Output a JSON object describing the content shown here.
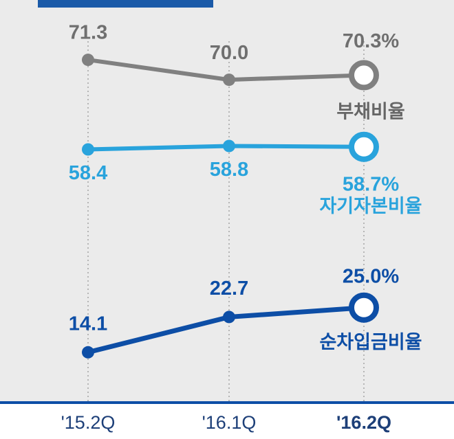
{
  "chart_data": {
    "type": "line",
    "categories": [
      "'15.2Q",
      "'16.1Q",
      "'16.2Q"
    ],
    "series": [
      {
        "name": "부채비율",
        "color": "#808080",
        "values": [
          71.3,
          70.0,
          70.3
        ],
        "value_labels": [
          "71.3",
          "70.0",
          "70.3%"
        ],
        "ylim": [
          49,
          75.2
        ]
      },
      {
        "name": "자기자본비율",
        "color": "#29a3dc",
        "values": [
          58.4,
          58.8,
          58.7
        ],
        "value_labels": [
          "58.4",
          "58.8",
          "58.7%"
        ],
        "ylim": [
          29,
          75.8
        ]
      },
      {
        "name": "순차입금비율",
        "color": "#0d4ea6",
        "values": [
          14.1,
          22.7,
          25.0
        ],
        "value_labels": [
          "14.1",
          "22.7",
          "25.0%"
        ],
        "ylim": [
          2,
          100
        ]
      }
    ]
  }
}
